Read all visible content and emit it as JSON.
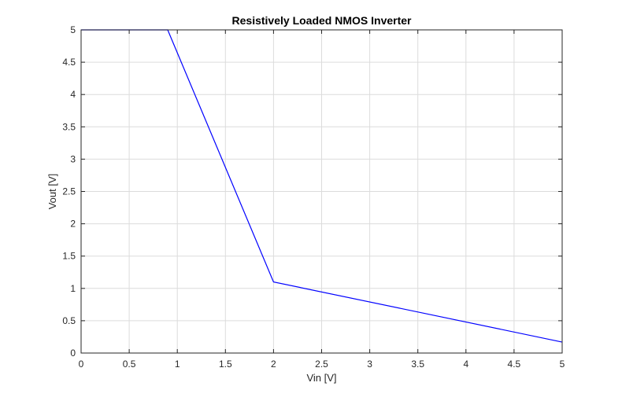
{
  "chart_data": {
    "type": "line",
    "title": "Resistively Loaded NMOS Inverter",
    "xlabel": "Vin [V]",
    "ylabel": "Vout [V]",
    "xlim": [
      0,
      5
    ],
    "ylim": [
      0,
      5
    ],
    "xticks": [
      0,
      0.5,
      1,
      1.5,
      2,
      2.5,
      3,
      3.5,
      4,
      4.5,
      5
    ],
    "yticks": [
      0,
      0.5,
      1,
      1.5,
      2,
      2.5,
      3,
      3.5,
      4,
      4.5,
      5
    ],
    "xtick_labels": [
      "0",
      "0.5",
      "1",
      "1.5",
      "2",
      "2.5",
      "3",
      "3.5",
      "4",
      "4.5",
      "5"
    ],
    "ytick_labels": [
      "0",
      "0.5",
      "1",
      "1.5",
      "2",
      "2.5",
      "3",
      "3.5",
      "4",
      "4.5",
      "5"
    ],
    "grid": true,
    "legend": "none",
    "series": [
      {
        "color": "#0000ff",
        "x": [
          0,
          0.9,
          2.0,
          5.0
        ],
        "y": [
          5.0,
          5.0,
          1.1,
          0.17
        ]
      }
    ]
  }
}
